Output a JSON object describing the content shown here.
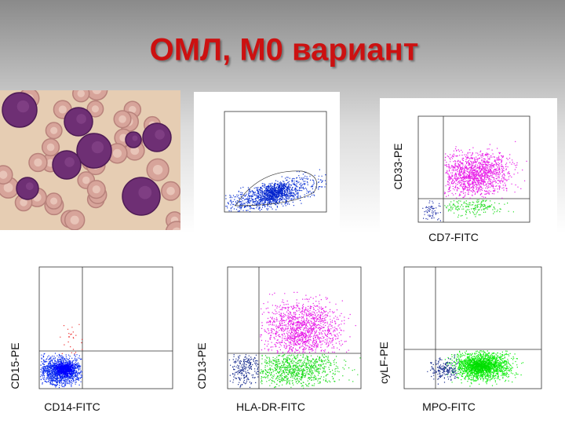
{
  "title": "ОМЛ, М0 вариант",
  "plots": [
    {
      "y_label": "CD33-PE",
      "x_label": "CD7-FITC"
    },
    {
      "y_label": "CD15-PE",
      "x_label": "CD14-FITC"
    },
    {
      "y_label": "CD13-PE",
      "x_label": "HLA-DR-FITC"
    },
    {
      "y_label": "cyLF-PE",
      "x_label": "MPO-FITC"
    }
  ]
}
